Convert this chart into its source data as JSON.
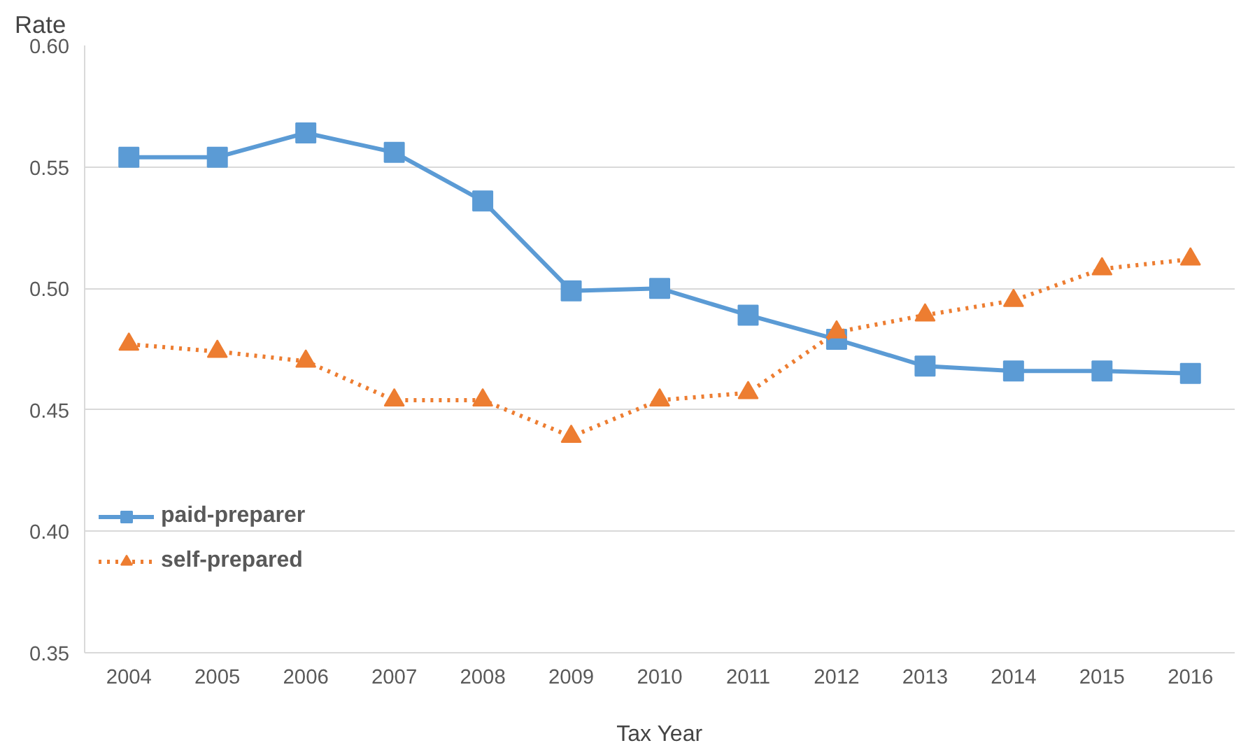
{
  "chart_data": {
    "type": "line",
    "xlabel": "Tax Year",
    "ylabel": "Rate",
    "categories": [
      "2004",
      "2005",
      "2006",
      "2007",
      "2008",
      "2009",
      "2010",
      "2011",
      "2012",
      "2013",
      "2014",
      "2015",
      "2016"
    ],
    "series": [
      {
        "name": "paid-preparer",
        "color": "#5b9bd5",
        "marker": "square",
        "line_style": "solid",
        "values": [
          0.554,
          0.554,
          0.564,
          0.556,
          0.536,
          0.499,
          0.5,
          0.489,
          0.479,
          0.468,
          0.466,
          0.466,
          0.465
        ]
      },
      {
        "name": "self-prepared",
        "color": "#ed7d31",
        "marker": "triangle",
        "line_style": "dotted",
        "values": [
          0.477,
          0.474,
          0.47,
          0.454,
          0.454,
          0.439,
          0.454,
          0.457,
          0.482,
          0.489,
          0.495,
          0.508,
          0.512
        ]
      }
    ],
    "ylim": [
      0.35,
      0.6
    ],
    "yticks": [
      {
        "value": 0.35,
        "label": "0.35"
      },
      {
        "value": 0.4,
        "label": "0.40"
      },
      {
        "value": 0.45,
        "label": "0.45"
      },
      {
        "value": 0.5,
        "label": "0.50"
      },
      {
        "value": 0.55,
        "label": "0.55"
      },
      {
        "value": 0.6,
        "label": "0.60"
      }
    ],
    "grid": "y",
    "legend": "bottom left"
  }
}
